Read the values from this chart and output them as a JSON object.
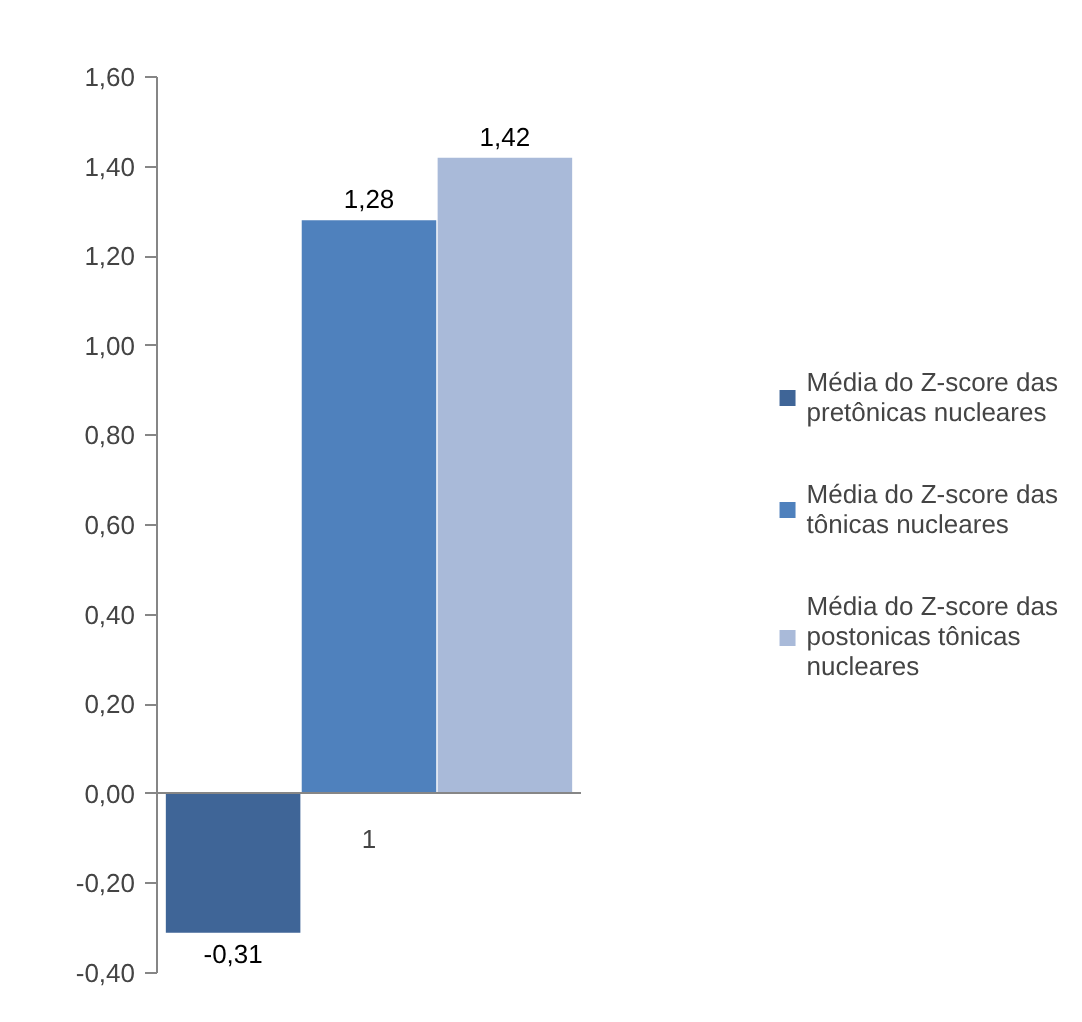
{
  "chart_data": {
    "type": "bar",
    "categories": [
      null,
      "1",
      null
    ],
    "series": [
      {
        "name": "Média do Z-score das pretônicas nucleares",
        "color": "#3f6597",
        "values": [
          -0.31,
          null,
          null
        ],
        "value_labels": [
          "-0,31",
          null,
          null
        ]
      },
      {
        "name": "Média do Z-score das tônicas nucleares",
        "color": "#4f81bd",
        "values": [
          null,
          1.28,
          null
        ],
        "value_labels": [
          null,
          "1,28",
          null
        ]
      },
      {
        "name": "Média do Z-score das postonicas tônicas nucleares",
        "color": "#a9bad9",
        "values": [
          null,
          null,
          1.42
        ],
        "value_labels": [
          null,
          null,
          "1,42"
        ]
      }
    ],
    "ylim": [
      -0.4,
      1.6
    ],
    "yticks": [
      {
        "value": -0.4,
        "label": "-0,40"
      },
      {
        "value": -0.2,
        "label": "-0,20"
      },
      {
        "value": 0,
        "label": "0,00"
      },
      {
        "value": 0.2,
        "label": "0,20"
      },
      {
        "value": 0.4,
        "label": "0,40"
      },
      {
        "value": 0.6,
        "label": "0,60"
      },
      {
        "value": 0.8,
        "label": "0,80"
      },
      {
        "value": 1.0,
        "label": "1,00"
      },
      {
        "value": 1.2,
        "label": "1,20"
      },
      {
        "value": 1.4,
        "label": "1,40"
      },
      {
        "value": 1.6,
        "label": "1,60"
      }
    ],
    "legend": "right"
  }
}
